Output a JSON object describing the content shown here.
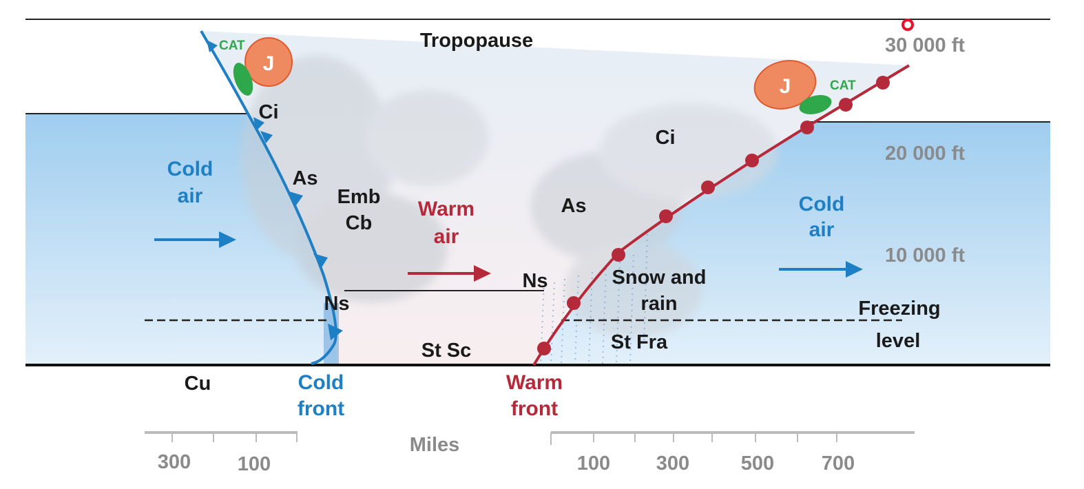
{
  "labels": {
    "tropopause": "Tropopause",
    "alt_30000": "30 000 ft",
    "alt_20000": "20 000 ft",
    "alt_10000": "10 000 ft",
    "cat_left": "CAT",
    "cat_right": "CAT",
    "jet_left": "J",
    "jet_right": "J",
    "ci_left": "Ci",
    "ci_right": "Ci",
    "as_left": "As",
    "as_right": "As",
    "emb": "Emb",
    "cb": "Cb",
    "ns_left": "Ns",
    "ns_right": "Ns",
    "cold_air_left_1": "Cold",
    "cold_air_left_2": "air",
    "cold_air_right_1": "Cold",
    "cold_air_right_2": "air",
    "warm_air_1": "Warm",
    "warm_air_2": "air",
    "snow_1": "Snow and",
    "snow_2": "rain",
    "freezing_1": "Freezing",
    "freezing_2": "level",
    "st_sc": "St Sc",
    "st_fra": "St Fra",
    "cu": "Cu",
    "cold_front_1": "Cold",
    "cold_front_2": "front",
    "warm_front_1": "Warm",
    "warm_front_2": "front",
    "miles": "Miles"
  },
  "scale_left": [
    "300",
    "100"
  ],
  "scale_right": [
    "100",
    "300",
    "500",
    "700"
  ],
  "colors": {
    "cold": "#1f7fc4",
    "warm": "#b52a3a",
    "cold_air_fill": "#a9d3f0",
    "jet": "#ef8a60",
    "cat": "#2ea84a"
  }
}
